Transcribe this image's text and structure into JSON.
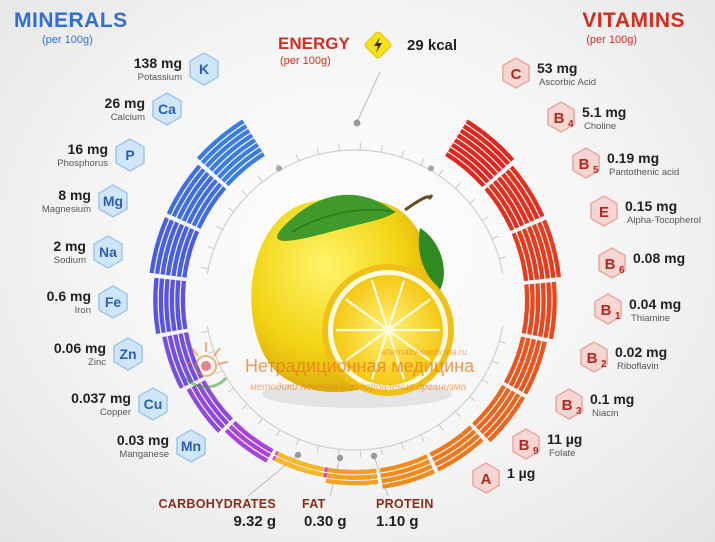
{
  "minerals": {
    "title": "MINERALS",
    "subtitle": "(per 100g)",
    "items": [
      {
        "symbol": "K",
        "amount": "138 mg",
        "name": "Potassium",
        "color": "#3b7de0"
      },
      {
        "symbol": "Ca",
        "amount": "26 mg",
        "name": "Calcium",
        "color": "#3f6ee0"
      },
      {
        "symbol": "P",
        "amount": "16 mg",
        "name": "Phosphorus",
        "color": "#4a5fe0"
      },
      {
        "symbol": "Mg",
        "amount": "8 mg",
        "name": "Magnesium",
        "color": "#5a55e0"
      },
      {
        "symbol": "Na",
        "amount": "2 mg",
        "name": "Sodium",
        "color": "#7550e0"
      },
      {
        "symbol": "Fe",
        "amount": "0.6 mg",
        "name": "Iron",
        "color": "#8e4ae0"
      },
      {
        "symbol": "Zn",
        "amount": "0.06 mg",
        "name": "Zinc",
        "color": "#a845d8"
      },
      {
        "symbol": "Cu",
        "amount": "0.037 mg",
        "name": "Copper",
        "color": "#c040cc"
      },
      {
        "symbol": "Mn",
        "amount": "0.03 mg",
        "name": "Manganese",
        "color": "#d83ec0"
      }
    ]
  },
  "vitamins": {
    "title": "VITAMINS",
    "subtitle": "(per 100g)",
    "items": [
      {
        "symbol": "C",
        "sub": "",
        "amount": "53 mg",
        "name": "Ascorbic Acid",
        "color": "#e0261e"
      },
      {
        "symbol": "B",
        "sub": "4",
        "amount": "5.1 mg",
        "name": "Choline",
        "color": "#e2301e"
      },
      {
        "symbol": "B",
        "sub": "5",
        "amount": "0.19 mg",
        "name": "Pantothenic acid",
        "color": "#e43c1e"
      },
      {
        "symbol": "E",
        "sub": "",
        "amount": "0.15 mg",
        "name": "Alpha-Tocopherol",
        "color": "#e6481e"
      },
      {
        "symbol": "B",
        "sub": "6",
        "amount": "0.08 mg",
        "name": "",
        "color": "#e8561e"
      },
      {
        "symbol": "B",
        "sub": "1",
        "amount": "0.04 mg",
        "name": "Thiamine",
        "color": "#ea661e"
      },
      {
        "symbol": "B",
        "sub": "2",
        "amount": "0.02 mg",
        "name": "Riboflavin",
        "color": "#ed781e"
      },
      {
        "symbol": "B",
        "sub": "3",
        "amount": "0.1 mg",
        "name": "Niacin",
        "color": "#f08c1e"
      },
      {
        "symbol": "B",
        "sub": "9",
        "amount": "11 µg",
        "name": "Folate",
        "color": "#f4a21e"
      },
      {
        "symbol": "A",
        "sub": "",
        "amount": "1 µg",
        "name": "",
        "color": "#f8b81e"
      }
    ]
  },
  "energy": {
    "label": "ENERGY",
    "subtitle": "(per 100g)",
    "value": "29 kcal",
    "icon": "lightning-icon"
  },
  "macros": [
    {
      "label": "CARBOHYDRATES",
      "value": "9.32 g"
    },
    {
      "label": "FAT",
      "value": "0.30 g"
    },
    {
      "label": "PROTEIN",
      "value": "1.10 g"
    }
  ],
  "watermark": {
    "site": "alternativ-medicina.ru",
    "title": "Нетрадиционная медицина",
    "tagline": "методики лечения и оздоровления организма"
  },
  "colors": {
    "minerals_title": "#2f6fd6",
    "vitamins_title": "#d32d1f",
    "energy_title": "#d32d1f",
    "mineral_badge": "#cfe6f8",
    "vitamin_badge": "#f6d6d2"
  }
}
